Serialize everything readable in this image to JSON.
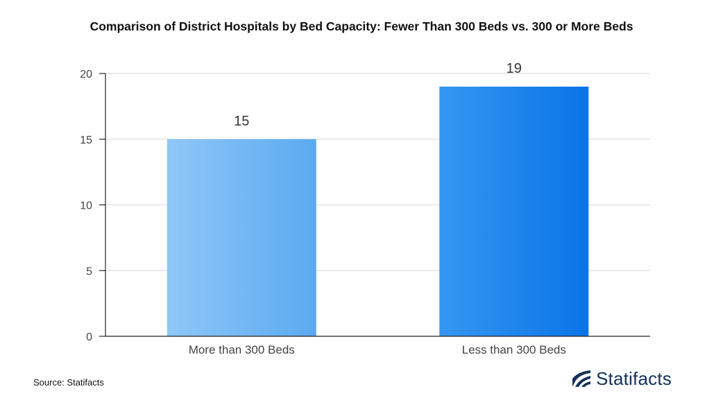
{
  "chart_data": {
    "type": "bar",
    "title": "Comparison of District Hospitals by Bed Capacity: Fewer Than 300 Beds vs. 300 or More Beds",
    "categories": [
      "More than 300 Beds",
      "Less than 300 Beds"
    ],
    "values": [
      15,
      19
    ],
    "xlabel": "",
    "ylabel": "",
    "ylim": [
      0,
      20
    ],
    "yticks": [
      0,
      5,
      10,
      15,
      20
    ],
    "grid": true,
    "colors": {
      "bar1_start": "#8fc7f7",
      "bar1_end": "#5aaaf0",
      "bar2_start": "#3597f2",
      "bar2_end": "#0a74e8",
      "grid": "#d4d4d4",
      "axis": "#222222",
      "label": "#444444"
    }
  },
  "footer": {
    "source": "Source: Statifacts",
    "brand": "Statifacts",
    "brand_color": "#14305a"
  }
}
